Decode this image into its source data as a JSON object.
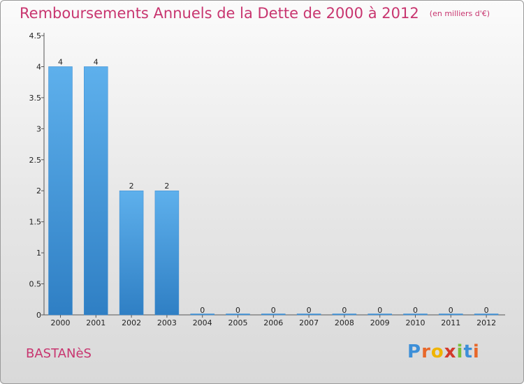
{
  "title": "Remboursements Annuels de la Dette de 2000 à 2012",
  "unit_note": "(en milliers d'€)",
  "commune": "BASTANèS",
  "brand": {
    "letters": [
      "P",
      "r",
      "o",
      "x",
      "i",
      "t",
      "i"
    ],
    "colors": [
      "#3d8fd8",
      "#e8682a",
      "#f0b400",
      "#d33a2c",
      "#7bbf3a",
      "#3d8fd8",
      "#e8682a"
    ]
  },
  "chart_data": {
    "type": "bar",
    "title": "Remboursements Annuels de la Dette de 2000 à 2012",
    "xlabel": "",
    "ylabel": "",
    "categories": [
      "2000",
      "2001",
      "2002",
      "2003",
      "2004",
      "2005",
      "2006",
      "2007",
      "2008",
      "2009",
      "2010",
      "2011",
      "2012"
    ],
    "values": [
      4,
      4,
      2,
      2,
      0,
      0,
      0,
      0,
      0,
      0,
      0,
      0,
      0
    ],
    "data_labels": [
      "4",
      "4",
      "2",
      "2",
      "0",
      "0",
      "0",
      "0",
      "0",
      "0",
      "0",
      "0",
      "0"
    ],
    "ylim": [
      0,
      4.5
    ],
    "y_ticks": [
      0,
      0.5,
      1,
      1.5,
      2,
      2.5,
      3,
      3.5,
      4,
      4.5
    ],
    "y_tick_labels": [
      "0",
      "0.5",
      "1",
      "1.5",
      "2",
      "2.5",
      "3",
      "3.5",
      "4",
      "4.5"
    ],
    "grid": false,
    "legend": "none",
    "bar_color": "#4a9ee0"
  }
}
